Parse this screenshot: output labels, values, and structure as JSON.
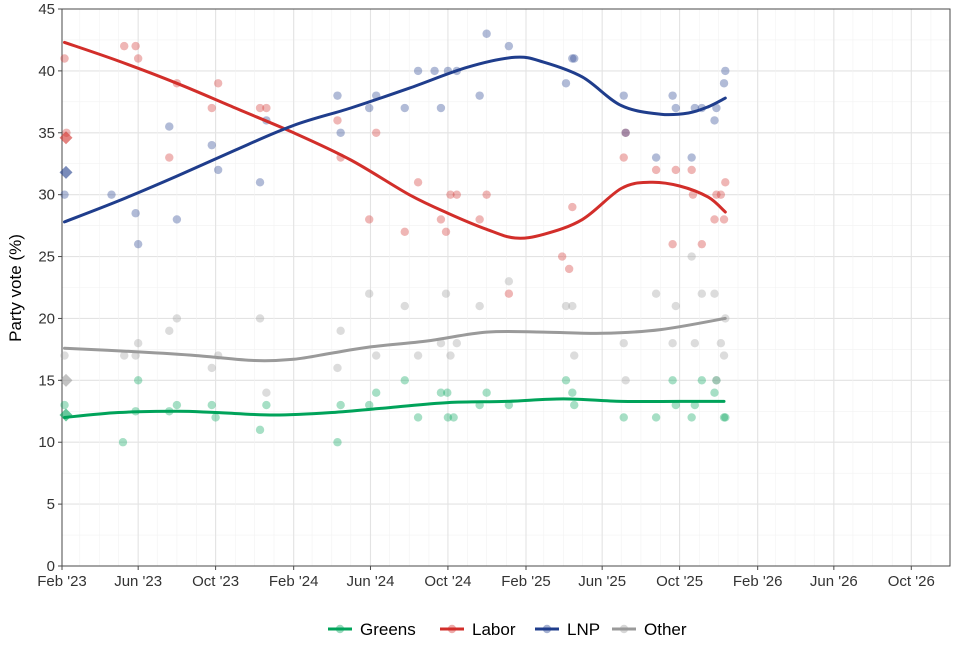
{
  "chart_data": {
    "type": "scatter",
    "title": "",
    "xlabel": "",
    "ylabel": "Party vote (%)",
    "xlim": [
      "2023-02-01",
      "2026-12-01"
    ],
    "ylim": [
      0,
      45
    ],
    "yticks": [
      0,
      5,
      10,
      15,
      20,
      25,
      30,
      35,
      40,
      45
    ],
    "xticks": [
      {
        "date": "2023-02-01",
        "label": "Feb '23"
      },
      {
        "date": "2023-06-01",
        "label": "Jun '23"
      },
      {
        "date": "2023-10-01",
        "label": "Oct '23"
      },
      {
        "date": "2024-02-01",
        "label": "Feb '24"
      },
      {
        "date": "2024-06-01",
        "label": "Jun '24"
      },
      {
        "date": "2024-10-01",
        "label": "Oct '24"
      },
      {
        "date": "2025-02-01",
        "label": "Feb '25"
      },
      {
        "date": "2025-06-01",
        "label": "Jun '25"
      },
      {
        "date": "2025-10-01",
        "label": "Oct '25"
      },
      {
        "date": "2026-02-01",
        "label": "Feb '26"
      },
      {
        "date": "2026-06-01",
        "label": "Jun '26"
      },
      {
        "date": "2026-10-01",
        "label": "Oct '26"
      }
    ],
    "grid": true,
    "legend_position": "bottom",
    "series": [
      {
        "name": "Greens",
        "color": "#00a35a",
        "election": {
          "date": "2023-02-01",
          "value": 12.2
        },
        "points": [
          [
            "2023-02-05",
            13
          ],
          [
            "2023-05-08",
            10
          ],
          [
            "2023-05-28",
            12.5
          ],
          [
            "2023-06-01",
            15
          ],
          [
            "2023-07-20",
            12.5
          ],
          [
            "2023-08-01",
            13
          ],
          [
            "2023-09-25",
            13
          ],
          [
            "2023-10-01",
            12
          ],
          [
            "2023-12-10",
            11
          ],
          [
            "2023-12-20",
            13
          ],
          [
            "2024-04-10",
            10
          ],
          [
            "2024-04-15",
            13
          ],
          [
            "2024-05-30",
            13
          ],
          [
            "2024-06-10",
            14
          ],
          [
            "2024-07-25",
            15
          ],
          [
            "2024-08-15",
            12
          ],
          [
            "2024-09-20",
            14
          ],
          [
            "2024-09-30",
            14
          ],
          [
            "2024-10-01",
            12
          ],
          [
            "2024-10-10",
            12
          ],
          [
            "2024-11-20",
            13
          ],
          [
            "2024-12-01",
            14
          ],
          [
            "2025-01-05",
            13
          ],
          [
            "2025-04-05",
            15
          ],
          [
            "2025-04-15",
            14
          ],
          [
            "2025-04-18",
            13
          ],
          [
            "2025-07-05",
            12
          ],
          [
            "2025-08-25",
            12
          ],
          [
            "2025-09-20",
            15
          ],
          [
            "2025-09-25",
            13
          ],
          [
            "2025-10-20",
            12
          ],
          [
            "2025-10-25",
            13
          ],
          [
            "2025-11-05",
            15
          ],
          [
            "2025-11-25",
            14
          ],
          [
            "2025-11-28",
            15
          ],
          [
            "2025-12-10",
            12
          ],
          [
            "2025-12-12",
            12
          ]
        ],
        "trend": [
          [
            "2023-02-05",
            12.0
          ],
          [
            "2023-05-01",
            12.4
          ],
          [
            "2023-08-01",
            12.5
          ],
          [
            "2023-10-01",
            12.4
          ],
          [
            "2024-01-01",
            12.2
          ],
          [
            "2024-04-01",
            12.4
          ],
          [
            "2024-07-01",
            12.8
          ],
          [
            "2024-10-01",
            13.2
          ],
          [
            "2025-01-01",
            13.3
          ],
          [
            "2025-04-01",
            13.5
          ],
          [
            "2025-07-01",
            13.3
          ],
          [
            "2025-10-01",
            13.3
          ],
          [
            "2025-12-10",
            13.3
          ]
        ]
      },
      {
        "name": "Labor",
        "color": "#d22e2a",
        "election": {
          "date": "2023-02-01",
          "value": 34.6
        },
        "points": [
          [
            "2023-02-05",
            41
          ],
          [
            "2023-02-08",
            35
          ],
          [
            "2023-05-10",
            42
          ],
          [
            "2023-05-28",
            42
          ],
          [
            "2023-06-01",
            41
          ],
          [
            "2023-07-20",
            33
          ],
          [
            "2023-08-01",
            39
          ],
          [
            "2023-09-25",
            37
          ],
          [
            "2023-10-05",
            39
          ],
          [
            "2023-12-10",
            37
          ],
          [
            "2023-12-20",
            37
          ],
          [
            "2024-04-10",
            36
          ],
          [
            "2024-04-15",
            33
          ],
          [
            "2024-05-30",
            28
          ],
          [
            "2024-06-10",
            35
          ],
          [
            "2024-07-25",
            27
          ],
          [
            "2024-08-15",
            31
          ],
          [
            "2024-09-20",
            28
          ],
          [
            "2024-09-28",
            27
          ],
          [
            "2024-10-05",
            30
          ],
          [
            "2024-10-15",
            30
          ],
          [
            "2024-11-20",
            28
          ],
          [
            "2024-12-01",
            30
          ],
          [
            "2025-01-05",
            22
          ],
          [
            "2025-03-30",
            25
          ],
          [
            "2025-04-10",
            24
          ],
          [
            "2025-04-15",
            29
          ],
          [
            "2025-07-05",
            33
          ],
          [
            "2025-07-08",
            35
          ],
          [
            "2025-08-25",
            32
          ],
          [
            "2025-09-20",
            26
          ],
          [
            "2025-09-25",
            32
          ],
          [
            "2025-10-20",
            32
          ],
          [
            "2025-10-22",
            30
          ],
          [
            "2025-11-05",
            26
          ],
          [
            "2025-11-25",
            28
          ],
          [
            "2025-11-28",
            30
          ],
          [
            "2025-12-05",
            30
          ],
          [
            "2025-12-10",
            28
          ],
          [
            "2025-12-12",
            31
          ]
        ],
        "trend": [
          [
            "2023-02-05",
            42.3
          ],
          [
            "2023-05-01",
            40.8
          ],
          [
            "2023-08-01",
            39.0
          ],
          [
            "2023-11-01",
            37.0
          ],
          [
            "2024-02-01",
            35.0
          ],
          [
            "2024-05-01",
            32.8
          ],
          [
            "2024-08-01",
            30.0
          ],
          [
            "2024-10-01",
            28.5
          ],
          [
            "2024-12-01",
            27.2
          ],
          [
            "2025-01-15",
            26.5
          ],
          [
            "2025-03-01",
            26.8
          ],
          [
            "2025-05-01",
            28.0
          ],
          [
            "2025-07-01",
            30.5
          ],
          [
            "2025-08-15",
            31.0
          ],
          [
            "2025-10-01",
            30.7
          ],
          [
            "2025-11-15",
            29.8
          ],
          [
            "2025-12-12",
            28.6
          ]
        ]
      },
      {
        "name": "LNP",
        "color": "#1f3d8c",
        "election": {
          "date": "2023-02-01",
          "value": 31.8
        },
        "points": [
          [
            "2023-02-05",
            30
          ],
          [
            "2023-04-20",
            30
          ],
          [
            "2023-05-28",
            28.5
          ],
          [
            "2023-06-01",
            26
          ],
          [
            "2023-07-20",
            35.5
          ],
          [
            "2023-08-01",
            28
          ],
          [
            "2023-09-25",
            34
          ],
          [
            "2023-10-05",
            32
          ],
          [
            "2023-12-10",
            31
          ],
          [
            "2023-12-20",
            36
          ],
          [
            "2024-04-10",
            38
          ],
          [
            "2024-04-15",
            35
          ],
          [
            "2024-05-30",
            37
          ],
          [
            "2024-06-10",
            38
          ],
          [
            "2024-07-25",
            37
          ],
          [
            "2024-08-15",
            40
          ],
          [
            "2024-09-10",
            40
          ],
          [
            "2024-09-20",
            37
          ],
          [
            "2024-10-01",
            40
          ],
          [
            "2024-10-15",
            40
          ],
          [
            "2024-11-20",
            38
          ],
          [
            "2024-12-01",
            43
          ],
          [
            "2025-01-05",
            42
          ],
          [
            "2025-04-05",
            39
          ],
          [
            "2025-04-15",
            41
          ],
          [
            "2025-04-18",
            41
          ],
          [
            "2025-07-05",
            38
          ],
          [
            "2025-07-08",
            35
          ],
          [
            "2025-08-25",
            33
          ],
          [
            "2025-09-20",
            38
          ],
          [
            "2025-09-25",
            37
          ],
          [
            "2025-10-20",
            33
          ],
          [
            "2025-10-25",
            37
          ],
          [
            "2025-11-05",
            37
          ],
          [
            "2025-11-25",
            36
          ],
          [
            "2025-11-28",
            37
          ],
          [
            "2025-12-10",
            39
          ],
          [
            "2025-12-12",
            40
          ]
        ],
        "trend": [
          [
            "2023-02-05",
            27.8
          ],
          [
            "2023-05-01",
            29.5
          ],
          [
            "2023-08-01",
            31.5
          ],
          [
            "2023-11-01",
            33.6
          ],
          [
            "2024-02-01",
            35.6
          ],
          [
            "2024-05-01",
            37.0
          ],
          [
            "2024-08-01",
            38.6
          ],
          [
            "2024-11-01",
            40.3
          ],
          [
            "2025-01-15",
            41.1
          ],
          [
            "2025-03-01",
            40.7
          ],
          [
            "2025-05-01",
            39.5
          ],
          [
            "2025-07-01",
            37.2
          ],
          [
            "2025-09-01",
            36.5
          ],
          [
            "2025-10-15",
            36.6
          ],
          [
            "2025-11-15",
            37.1
          ],
          [
            "2025-12-12",
            37.8
          ]
        ]
      },
      {
        "name": "Other",
        "color": "#9a9a9a",
        "election": {
          "date": "2023-02-01",
          "value": 15.0
        },
        "points": [
          [
            "2023-02-05",
            17
          ],
          [
            "2023-05-10",
            17
          ],
          [
            "2023-05-28",
            17
          ],
          [
            "2023-06-01",
            18
          ],
          [
            "2023-07-20",
            19
          ],
          [
            "2023-08-01",
            20
          ],
          [
            "2023-09-25",
            16
          ],
          [
            "2023-10-05",
            17
          ],
          [
            "2023-12-10",
            20
          ],
          [
            "2023-12-20",
            14
          ],
          [
            "2024-04-10",
            16
          ],
          [
            "2024-04-15",
            19
          ],
          [
            "2024-05-30",
            22
          ],
          [
            "2024-06-10",
            17
          ],
          [
            "2024-07-25",
            21
          ],
          [
            "2024-08-15",
            17
          ],
          [
            "2024-09-20",
            18
          ],
          [
            "2024-09-28",
            22
          ],
          [
            "2024-10-05",
            17
          ],
          [
            "2024-10-15",
            18
          ],
          [
            "2024-11-20",
            21
          ],
          [
            "2025-01-05",
            23
          ],
          [
            "2025-04-05",
            21
          ],
          [
            "2025-04-15",
            21
          ],
          [
            "2025-04-18",
            17
          ],
          [
            "2025-07-05",
            18
          ],
          [
            "2025-07-08",
            15
          ],
          [
            "2025-08-25",
            22
          ],
          [
            "2025-09-20",
            18
          ],
          [
            "2025-09-25",
            21
          ],
          [
            "2025-10-20",
            25
          ],
          [
            "2025-10-25",
            18
          ],
          [
            "2025-11-05",
            22
          ],
          [
            "2025-11-25",
            22
          ],
          [
            "2025-11-28",
            15
          ],
          [
            "2025-12-05",
            18
          ],
          [
            "2025-12-10",
            17
          ],
          [
            "2025-12-12",
            20
          ]
        ],
        "trend": [
          [
            "2023-02-05",
            17.6
          ],
          [
            "2023-06-01",
            17.3
          ],
          [
            "2023-09-01",
            17.0
          ],
          [
            "2023-12-01",
            16.6
          ],
          [
            "2024-02-01",
            16.7
          ],
          [
            "2024-04-01",
            17.2
          ],
          [
            "2024-06-01",
            17.7
          ],
          [
            "2024-09-01",
            18.2
          ],
          [
            "2024-12-01",
            18.9
          ],
          [
            "2025-03-01",
            18.9
          ],
          [
            "2025-06-01",
            18.8
          ],
          [
            "2025-09-01",
            19.1
          ],
          [
            "2025-12-12",
            20.0
          ]
        ]
      }
    ]
  }
}
